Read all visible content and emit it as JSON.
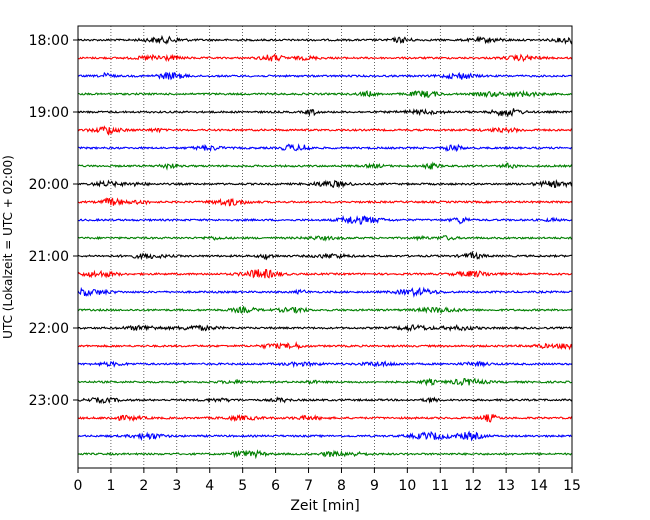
{
  "chart_data": {
    "type": "line",
    "title": "",
    "xlabel": "Zeit  [min]",
    "ylabel": "UTC (Lokalzeit = UTC + 02:00)",
    "xlim": [
      0,
      15
    ],
    "x_ticks": [
      "0",
      "1",
      "2",
      "3",
      "4",
      "5",
      "6",
      "7",
      "8",
      "9",
      "10",
      "11",
      "12",
      "13",
      "14",
      "15"
    ],
    "y_ticks": [
      "18:00",
      "19:00",
      "20:00",
      "21:00",
      "22:00",
      "23:00"
    ],
    "trace_interval_minutes": 15,
    "start_time": "18:00",
    "trace_count": 24,
    "trace_colors": [
      "#000000",
      "#ff0000",
      "#0000ff",
      "#008000"
    ],
    "grid": "vertical dotted lines at each minute",
    "legend": "none"
  }
}
